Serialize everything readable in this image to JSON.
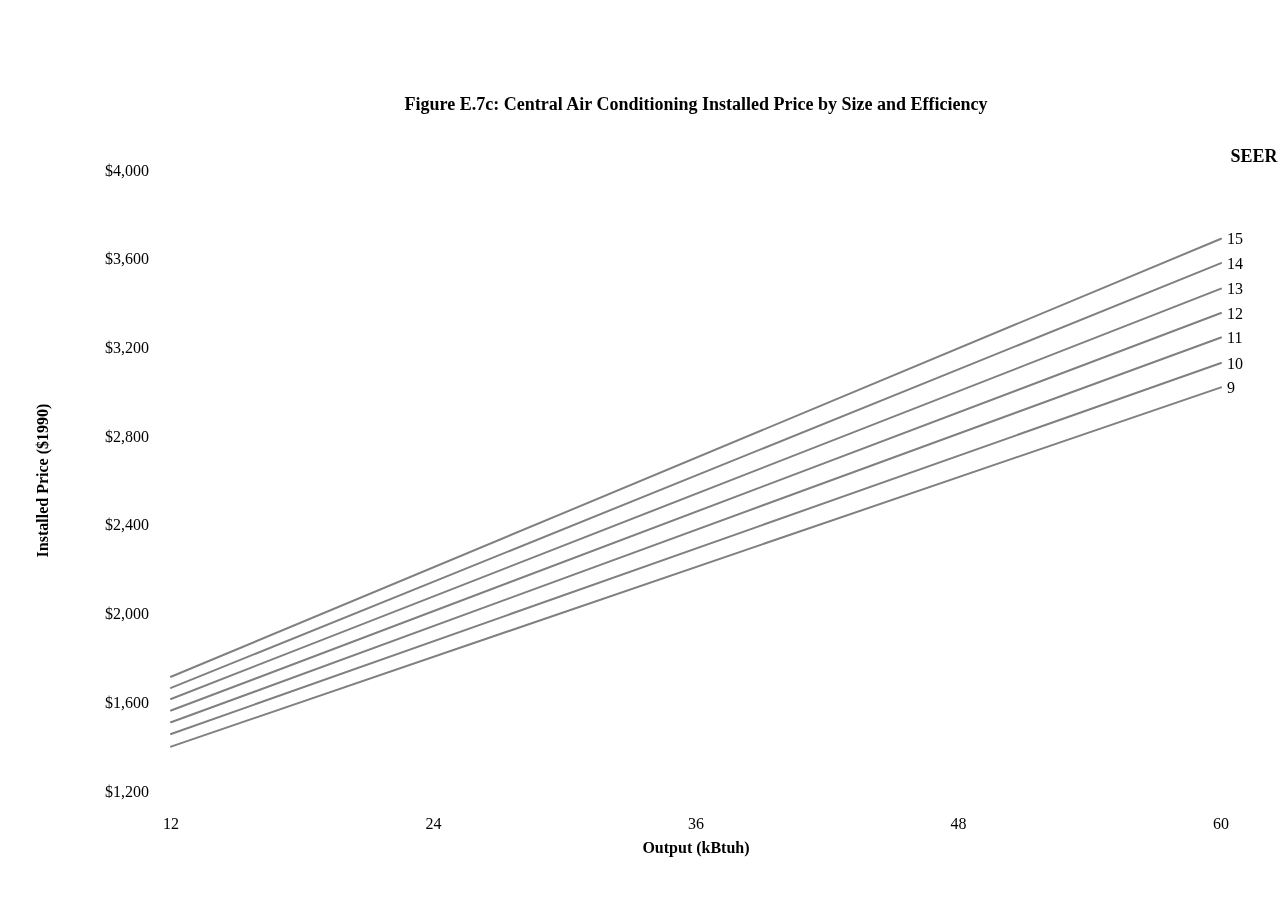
{
  "chart_data": {
    "type": "line",
    "title": "Figure E.7c: Central Air Conditioning Installed Price by Size and Efficiency",
    "xlabel": "Output (kBtuh)",
    "ylabel": "Installed Price ($1990)",
    "legend_title": "SEER",
    "x": [
      12,
      60
    ],
    "xlim": [
      12,
      60
    ],
    "xticks": [
      12,
      24,
      36,
      48,
      60
    ],
    "ylim": [
      1200,
      4000
    ],
    "yticks": [
      {
        "value": 1200,
        "label": "$1,200"
      },
      {
        "value": 1600,
        "label": "$1,600"
      },
      {
        "value": 2000,
        "label": "$2,000"
      },
      {
        "value": 2400,
        "label": "$2,400"
      },
      {
        "value": 2800,
        "label": "$2,800"
      },
      {
        "value": 3200,
        "label": "$3,200"
      },
      {
        "value": 3600,
        "label": "$3,600"
      },
      {
        "value": 4000,
        "label": "$4,000"
      }
    ],
    "grid": false,
    "marker": "none",
    "line_style": "solid",
    "series": [
      {
        "name": "15",
        "color": "#808080",
        "values": [
          1715,
          3690
        ]
      },
      {
        "name": "14",
        "color": "#808080",
        "values": [
          1665,
          3580
        ]
      },
      {
        "name": "13",
        "color": "#808080",
        "values": [
          1615,
          3465
        ]
      },
      {
        "name": "12",
        "color": "#808080",
        "values": [
          1563,
          3355
        ]
      },
      {
        "name": "11",
        "color": "#808080",
        "values": [
          1510,
          3245
        ]
      },
      {
        "name": "10",
        "color": "#808080",
        "values": [
          1457,
          3130
        ]
      },
      {
        "name": "9",
        "color": "#808080",
        "values": [
          1400,
          3020
        ]
      }
    ]
  }
}
